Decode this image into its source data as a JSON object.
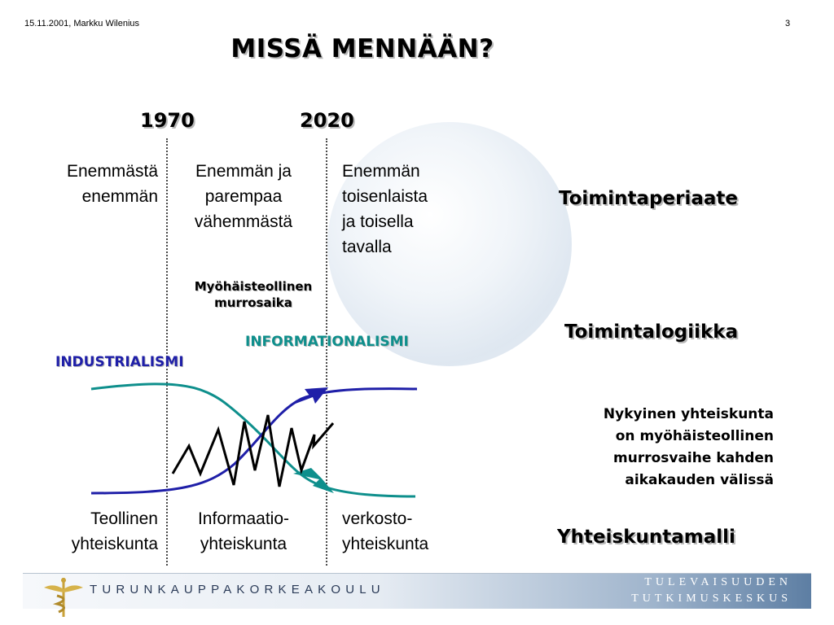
{
  "header": {
    "date_author": "15.11.2001, Markku Wilenius",
    "page_number": "3"
  },
  "title": "MISSÄ MENNÄÄN?",
  "years": [
    "1970",
    "2020"
  ],
  "top_columns": {
    "col1": [
      "Enemmästä",
      "enemmän"
    ],
    "col2": [
      "Enemmän ja",
      "parempaa",
      "vähemmästä"
    ],
    "col3": [
      "Enemmän",
      "toisenlaista",
      "ja toisella",
      "tavalla"
    ]
  },
  "murros": [
    "Myöhäisteollinen",
    "murrosaika"
  ],
  "industrialismi": "INDUSTRIALISMI",
  "informationalismi": "INFORMATIONALISMI",
  "bottom_columns": {
    "col1": [
      "Teollinen",
      "yhteiskunta"
    ],
    "col2": [
      "Informaatio-",
      "yhteiskunta"
    ],
    "col3": [
      "verkosto-",
      "yhteiskunta"
    ]
  },
  "right_labels": {
    "toimintaperiaate": "Toimintaperiaate",
    "toimintalogiikka": "Toimintalogiikka",
    "yhteiskuntamalli": "Yhteiskuntamalli",
    "nykyinen": [
      "Nykyinen yhteiskunta",
      "on myöhäisteollinen",
      "murrosvaihe kahden",
      "aikakauden välissä"
    ]
  },
  "footer": {
    "left": "TURUNKAUPPAKORKEAKOULU",
    "right": [
      "TULEVAISUUDEN",
      "TUTKIMUSKESKUS"
    ]
  },
  "colors": {
    "industrialismi": "#1f1fa8",
    "informationalismi": "#0e8f8c",
    "zigzag": "#000000"
  }
}
